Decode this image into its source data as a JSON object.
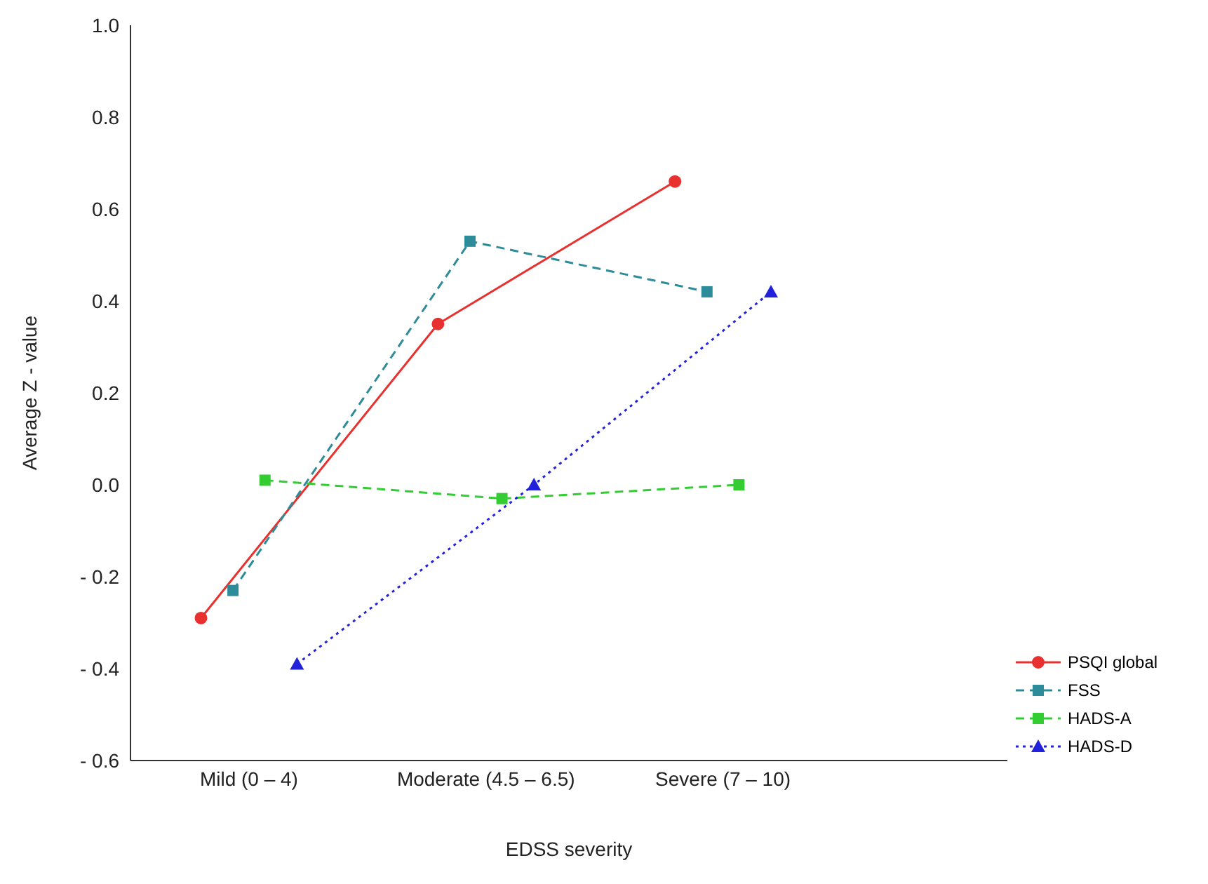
{
  "chart_data": {
    "type": "line",
    "xlabel": "EDSS severity",
    "ylabel": "Average Z - value",
    "categories": [
      "Mild (0 – 4)",
      "Moderate  (4.5 – 6.5)",
      "Severe  (7 – 10)"
    ],
    "ylim": [
      -0.6,
      1.0
    ],
    "yticks": [
      {
        "value": -0.6,
        "label": "- 0.6"
      },
      {
        "value": -0.4,
        "label": "- 0.4"
      },
      {
        "value": -0.2,
        "label": "- 0.2"
      },
      {
        "value": 0,
        "label": "0.0"
      },
      {
        "value": 0.2,
        "label": "0.2"
      },
      {
        "value": 0.4,
        "label": "0.4"
      },
      {
        "value": 0.6,
        "label": "0.6"
      },
      {
        "value": 0.8,
        "label": "0.8"
      },
      {
        "value": 1.0,
        "label": "1.0"
      }
    ],
    "grid": false,
    "legend": "bottom right",
    "series": [
      {
        "name": "PSQI global",
        "color": "#e8312f",
        "values": [
          -0.29,
          0.35,
          0.66
        ],
        "marker": "circle",
        "line_style": "solid"
      },
      {
        "name": "FSS",
        "color": "#2e8b9a",
        "values": [
          -0.23,
          0.53,
          0.42
        ],
        "marker": "square",
        "line_style": "dashed"
      },
      {
        "name": "HADS-A",
        "color": "#33cc33",
        "values": [
          0.01,
          -0.03,
          0.0
        ],
        "marker": "square",
        "line_style": "dashed"
      },
      {
        "name": "HADS-D",
        "color": "#2222dd",
        "values": [
          -0.39,
          0.0,
          0.42
        ],
        "marker": "triangle",
        "line_style": "dotted"
      }
    ]
  }
}
